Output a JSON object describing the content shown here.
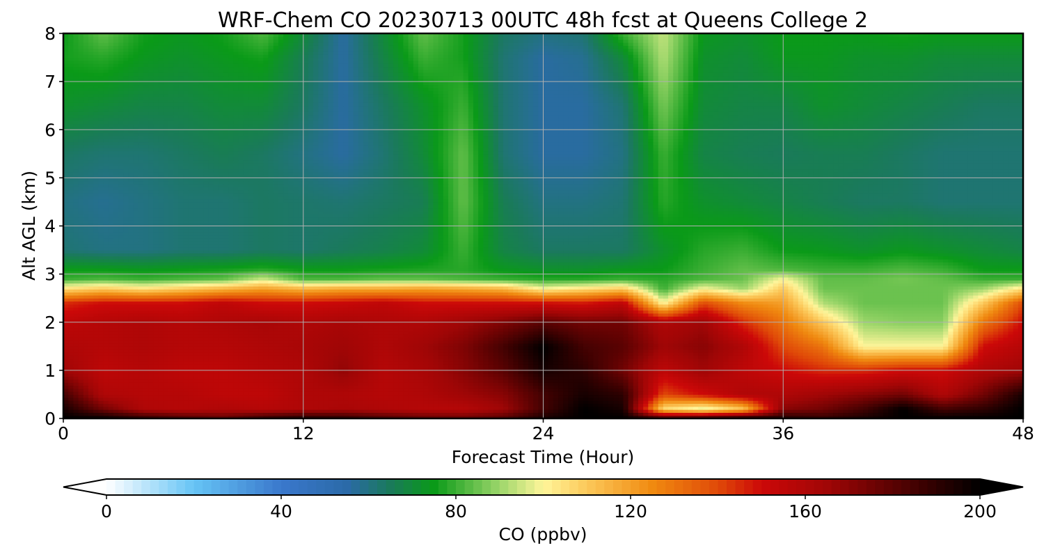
{
  "chart_data": {
    "type": "heatmap",
    "title": "WRF-Chem CO  20230713 00UTC 48h fcst at Queens College 2",
    "xlabel": "Forecast Time (Hour)",
    "ylabel": "Alt AGL (km)",
    "xlim": [
      0,
      48
    ],
    "ylim": [
      0,
      8
    ],
    "xticks": [
      "0",
      "12",
      "24",
      "36",
      "48"
    ],
    "yticks": [
      "0",
      "1",
      "2",
      "3",
      "4",
      "5",
      "6",
      "7",
      "8"
    ],
    "grid": true,
    "colorbar": {
      "label": "CO  (ppbv)",
      "range": [
        0,
        200
      ],
      "ticks": [
        "0",
        "40",
        "80",
        "120",
        "160",
        "200"
      ],
      "extend": "both",
      "stops": [
        {
          "v": 0,
          "c": "#ffffff"
        },
        {
          "v": 20,
          "c": "#66c4f5"
        },
        {
          "v": 40,
          "c": "#3a78cc"
        },
        {
          "v": 55,
          "c": "#2b6aa8"
        },
        {
          "v": 65,
          "c": "#1a7a5a"
        },
        {
          "v": 75,
          "c": "#0a9a18"
        },
        {
          "v": 90,
          "c": "#9cd66a"
        },
        {
          "v": 100,
          "c": "#fff59a"
        },
        {
          "v": 110,
          "c": "#fcc85a"
        },
        {
          "v": 125,
          "c": "#f08a10"
        },
        {
          "v": 140,
          "c": "#e04a08"
        },
        {
          "v": 150,
          "c": "#cc0808"
        },
        {
          "v": 165,
          "c": "#a00606"
        },
        {
          "v": 180,
          "c": "#5a0202"
        },
        {
          "v": 200,
          "c": "#000000"
        }
      ]
    },
    "hours": [
      0,
      2,
      4,
      6,
      8,
      10,
      12,
      14,
      16,
      18,
      20,
      22,
      24,
      26,
      28,
      30,
      32,
      34,
      36,
      38,
      40,
      42,
      44,
      46,
      48
    ],
    "altitudes_km": [
      0,
      0.2,
      0.5,
      1.0,
      1.5,
      2.0,
      2.4,
      2.7,
      2.9,
      3.1,
      3.5,
      4.5,
      5.5,
      6.5,
      7.5,
      8.0
    ],
    "values_ppbv": [
      [
        200,
        200,
        192,
        185,
        180,
        190,
        195,
        192,
        185,
        180,
        178,
        182,
        195,
        200,
        200,
        190,
        195,
        200,
        195,
        190,
        195,
        200,
        200,
        200,
        200
      ],
      [
        195,
        175,
        160,
        158,
        160,
        158,
        160,
        162,
        160,
        158,
        158,
        165,
        185,
        200,
        195,
        105,
        95,
        110,
        170,
        175,
        185,
        200,
        185,
        190,
        200
      ],
      [
        185,
        160,
        158,
        158,
        155,
        155,
        160,
        160,
        158,
        160,
        165,
        170,
        185,
        195,
        190,
        140,
        150,
        160,
        160,
        165,
        170,
        175,
        160,
        175,
        195
      ],
      [
        165,
        155,
        158,
        155,
        155,
        158,
        160,
        168,
        158,
        162,
        170,
        180,
        195,
        190,
        175,
        155,
        165,
        155,
        150,
        145,
        145,
        150,
        150,
        160,
        165
      ],
      [
        160,
        158,
        160,
        158,
        158,
        160,
        162,
        165,
        160,
        165,
        172,
        185,
        200,
        185,
        180,
        165,
        170,
        160,
        140,
        130,
        100,
        100,
        100,
        150,
        158
      ],
      [
        155,
        158,
        160,
        158,
        160,
        162,
        160,
        162,
        160,
        160,
        165,
        172,
        180,
        175,
        175,
        160,
        165,
        145,
        130,
        110,
        90,
        88,
        88,
        130,
        150
      ],
      [
        145,
        150,
        150,
        150,
        155,
        150,
        150,
        152,
        155,
        150,
        150,
        150,
        150,
        148,
        155,
        100,
        140,
        125,
        120,
        92,
        85,
        85,
        85,
        110,
        140
      ],
      [
        105,
        110,
        105,
        110,
        115,
        120,
        115,
        118,
        118,
        120,
        118,
        115,
        100,
        105,
        110,
        80,
        100,
        90,
        110,
        85,
        85,
        85,
        85,
        90,
        105
      ],
      [
        80,
        82,
        80,
        82,
        84,
        95,
        82,
        82,
        84,
        84,
        82,
        80,
        78,
        78,
        80,
        78,
        82,
        85,
        100,
        84,
        84,
        86,
        84,
        80,
        80
      ],
      [
        75,
        75,
        74,
        75,
        76,
        78,
        75,
        75,
        76,
        77,
        78,
        74,
        72,
        72,
        74,
        75,
        80,
        84,
        82,
        80,
        80,
        82,
        80,
        75,
        75
      ],
      [
        62,
        60,
        60,
        62,
        62,
        64,
        63,
        65,
        67,
        70,
        80,
        68,
        64,
        64,
        64,
        72,
        78,
        80,
        75,
        74,
        72,
        74,
        72,
        70,
        68
      ],
      [
        60,
        58,
        60,
        62,
        62,
        64,
        63,
        62,
        64,
        66,
        84,
        66,
        60,
        60,
        62,
        78,
        72,
        70,
        68,
        66,
        64,
        64,
        62,
        62,
        62
      ],
      [
        64,
        62,
        62,
        64,
        66,
        64,
        60,
        56,
        62,
        70,
        84,
        62,
        56,
        56,
        60,
        80,
        68,
        66,
        65,
        66,
        66,
        64,
        62,
        62,
        62
      ],
      [
        72,
        70,
        68,
        68,
        70,
        70,
        64,
        56,
        64,
        72,
        80,
        62,
        56,
        56,
        62,
        86,
        70,
        68,
        68,
        72,
        70,
        68,
        66,
        64,
        64
      ],
      [
        76,
        78,
        74,
        72,
        74,
        76,
        66,
        56,
        68,
        80,
        76,
        62,
        56,
        58,
        70,
        92,
        72,
        70,
        74,
        74,
        72,
        72,
        70,
        70,
        70
      ],
      [
        75,
        84,
        76,
        74,
        76,
        82,
        70,
        56,
        70,
        84,
        76,
        64,
        60,
        62,
        80,
        94,
        74,
        72,
        75,
        75,
        75,
        76,
        75,
        75,
        75
      ]
    ]
  }
}
